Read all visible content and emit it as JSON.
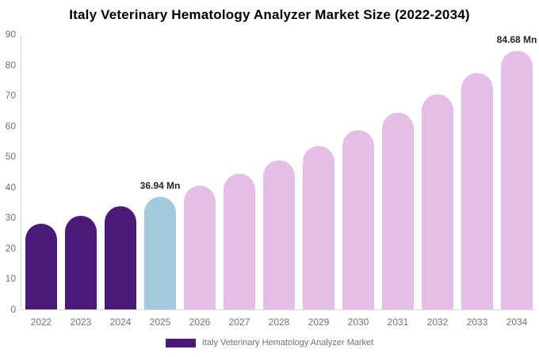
{
  "chart_data": {
    "type": "bar",
    "title": "Italy Veterinary Hematology Analyzer Market Size (2022-2034)",
    "xlabel": "",
    "ylabel": "",
    "unit": "Mn",
    "categories": [
      "2022",
      "2023",
      "2024",
      "2025",
      "2026",
      "2027",
      "2028",
      "2029",
      "2030",
      "2031",
      "2032",
      "2033",
      "2034"
    ],
    "values": [
      28.0,
      30.7,
      33.7,
      36.94,
      40.5,
      44.4,
      48.7,
      53.4,
      58.6,
      64.2,
      70.4,
      77.2,
      84.68
    ],
    "bar_colors": [
      "#4B1979",
      "#4B1979",
      "#4B1979",
      "#A2CBE0",
      "#E5BEE7",
      "#E5BEE7",
      "#E5BEE7",
      "#E5BEE7",
      "#E5BEE7",
      "#E5BEE7",
      "#E5BEE7",
      "#E5BEE7",
      "#E5BEE7"
    ],
    "ylim": [
      0,
      90
    ],
    "yticks": [
      0,
      10,
      20,
      30,
      40,
      50,
      60,
      70,
      80,
      90
    ],
    "grid": false,
    "legend_position": "bottom",
    "data_labels": [
      {
        "category": "2025",
        "text": "36.94 Mn"
      },
      {
        "category": "2034",
        "text": "84.68 Mn"
      }
    ],
    "colors": {
      "title": "#000000",
      "axis_line": "#D9D9D9",
      "tick_label": "#737373",
      "data_label": "#262626",
      "historical_bars": "#4B1979",
      "base_year_bar": "#A2CBE0",
      "forecast_bars": "#E5BEE7"
    },
    "legend": {
      "items": [
        {
          "label": "Italy Veterinary Hematology Analyzer Market",
          "swatch_color": "#4B1979"
        }
      ]
    }
  }
}
